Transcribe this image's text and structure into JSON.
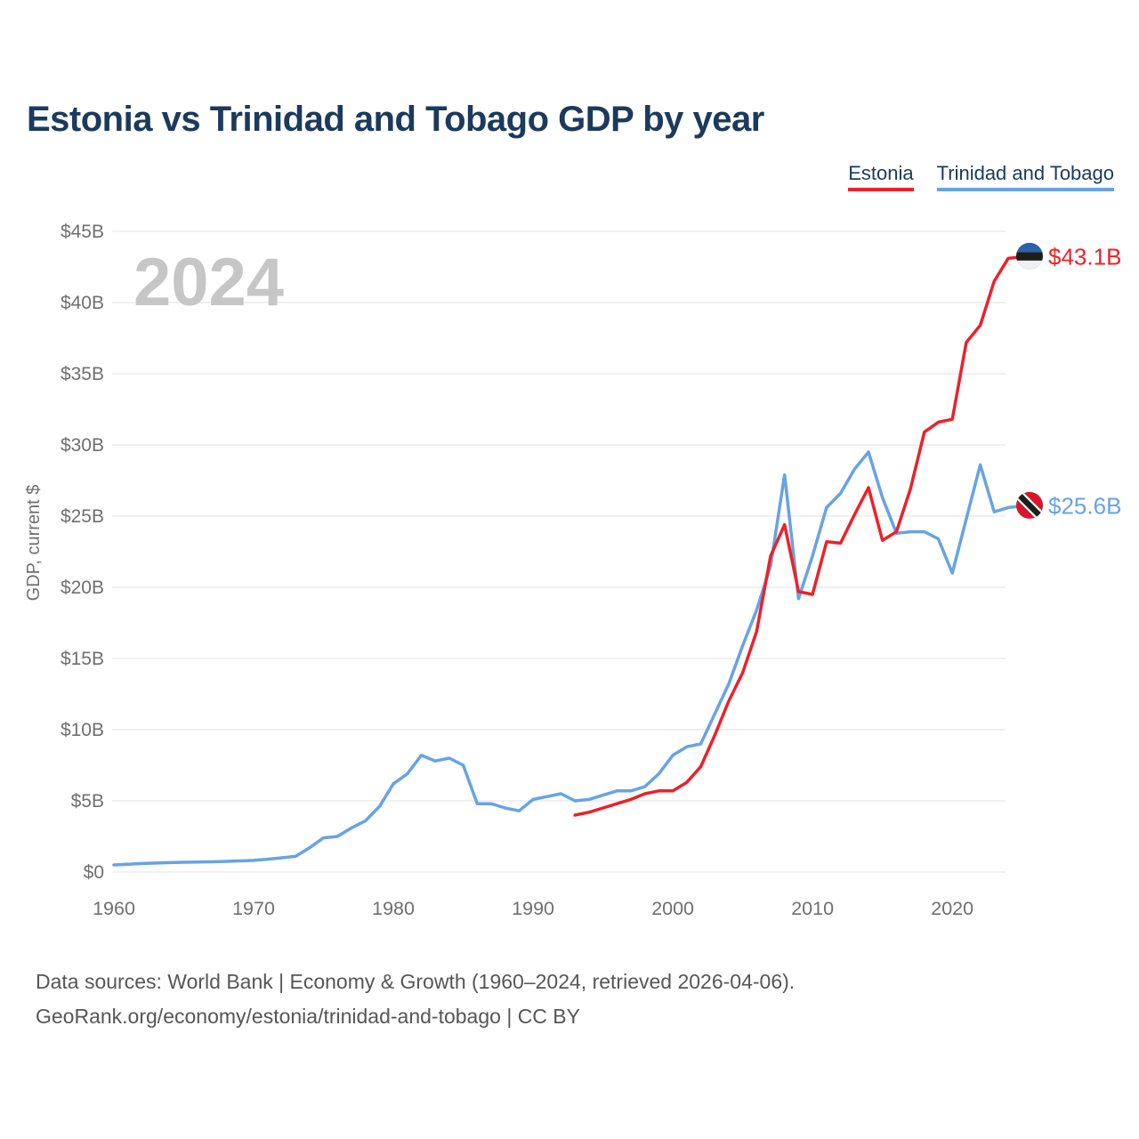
{
  "title": "Estonia vs Trinidad and Tobago GDP by year",
  "watermark": "2024",
  "legend": [
    {
      "label": "Estonia",
      "color": "#ee2029"
    },
    {
      "label": "Trinidad and Tobago",
      "color": "#67a3e5"
    }
  ],
  "footer": {
    "line1": "Data sources: World Bank | Economy & Growth (1960–2024, retrieved 2026-04-06).",
    "line2": "GeoRank.org/economy/estonia/trinidad-and-tobago | CC BY"
  },
  "chart_data": {
    "type": "line",
    "title": "Estonia vs Trinidad and Tobago GDP by year",
    "xlabel": "",
    "ylabel": "GDP, current $",
    "xlim": [
      1960,
      2024
    ],
    "ylim": [
      0,
      45
    ],
    "grid": "horizontal",
    "legend_position": "top-right",
    "x_ticks": [
      1960,
      1970,
      1980,
      1990,
      2000,
      2010,
      2020
    ],
    "y_tick_step": 5,
    "y_tick_labels": [
      "$0",
      "$5B",
      "$10B",
      "$15B",
      "$20B",
      "$25B",
      "$30B",
      "$35B",
      "$40B",
      "$45B"
    ],
    "units": "billion current US$",
    "series": [
      {
        "name": "Trinidad and Tobago",
        "color": "#67a3e5",
        "flag": "trinidad-and-tobago",
        "end_label": "$25.6B",
        "start_year": 1960,
        "end_year": 2024,
        "values": [
          0.5,
          0.55,
          0.6,
          0.63,
          0.66,
          0.69,
          0.7,
          0.72,
          0.75,
          0.78,
          0.82,
          0.9,
          1.0,
          1.1,
          1.7,
          2.4,
          2.5,
          3.1,
          3.6,
          4.6,
          6.2,
          6.9,
          8.2,
          7.8,
          8.0,
          7.5,
          4.8,
          4.8,
          4.5,
          4.3,
          5.1,
          5.3,
          5.5,
          5.0,
          5.1,
          5.4,
          5.7,
          5.7,
          6.0,
          6.9,
          8.2,
          8.8,
          9.0,
          11.1,
          13.2,
          15.9,
          18.4,
          21.5,
          27.9,
          19.2,
          22.2,
          25.6,
          26.6,
          28.3,
          29.5,
          26.3,
          23.8,
          23.9,
          23.9,
          23.4,
          21.0,
          24.8,
          28.6,
          25.3,
          25.6
        ]
      },
      {
        "name": "Estonia",
        "color": "#ee2029",
        "flag": "estonia",
        "end_label": "$43.1B",
        "start_year": 1993,
        "end_year": 2024,
        "values": [
          4.0,
          4.2,
          4.5,
          4.8,
          5.1,
          5.5,
          5.7,
          5.7,
          6.3,
          7.4,
          9.6,
          12.0,
          14.0,
          16.9,
          22.2,
          24.4,
          19.7,
          19.5,
          23.2,
          23.1,
          25.1,
          27.0,
          23.3,
          23.9,
          26.9,
          30.9,
          31.6,
          31.8,
          37.2,
          38.4,
          41.5,
          43.1
        ]
      }
    ],
    "colors": {
      "estonia_line": "#ee2029",
      "trinidad_line": "#67a3e5",
      "grid": "#e8e8e8",
      "axis_text": "#6f6f6f",
      "watermark": "#c6c6c6",
      "title_text": "#1b3a5c",
      "estonia_flag_blue": "#2963ae",
      "flag_black": "#1d1d1b",
      "trinidad_flag_red": "#d7152e"
    }
  }
}
